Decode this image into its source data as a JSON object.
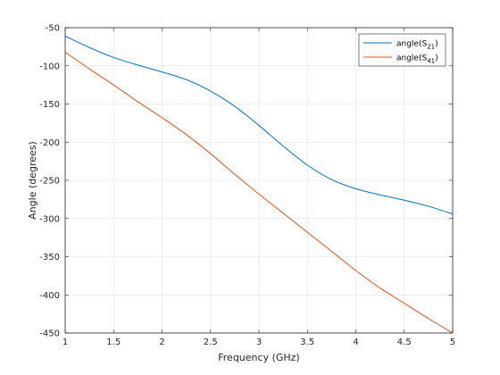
{
  "chart_data": {
    "type": "line",
    "xlabel": "Frequency (GHz)",
    "ylabel": "Angle (degrees)",
    "xlim": [
      1,
      5
    ],
    "ylim": [
      -450,
      -50
    ],
    "xticks": [
      1,
      1.5,
      2,
      2.5,
      3,
      3.5,
      4,
      4.5,
      5
    ],
    "yticks": [
      -50,
      -100,
      -150,
      -200,
      -250,
      -300,
      -350,
      -400,
      -450
    ],
    "xtick_labels": [
      "1",
      "1.5",
      "2",
      "2.5",
      "3",
      "3.5",
      "4",
      "4.5",
      "5"
    ],
    "ytick_labels": [
      "-50",
      "-100",
      "-150",
      "-200",
      "-250",
      "-300",
      "-350",
      "-400",
      "-450"
    ],
    "grid": true,
    "legend_position": "top-right",
    "series": [
      {
        "name": "angle(S21)",
        "label_base": "angle(S",
        "label_sub": "21",
        "label_end": ")",
        "color": "#0072BD",
        "x": [
          1.0,
          1.25,
          1.5,
          1.75,
          2.0,
          2.25,
          2.5,
          2.75,
          3.0,
          3.25,
          3.5,
          3.75,
          4.0,
          4.25,
          4.5,
          4.75,
          5.0
        ],
        "y": [
          -61,
          -76,
          -89,
          -99,
          -108,
          -118,
          -133,
          -153,
          -178,
          -205,
          -230,
          -249,
          -261,
          -269,
          -276,
          -284,
          -294
        ]
      },
      {
        "name": "angle(S41)",
        "label_base": "angle(S",
        "label_sub": "41",
        "label_end": ")",
        "color": "#D95319",
        "x": [
          1.0,
          1.25,
          1.5,
          1.75,
          2.0,
          2.25,
          2.5,
          2.75,
          3.0,
          3.25,
          3.5,
          3.75,
          4.0,
          4.25,
          4.5,
          4.75,
          5.0
        ],
        "y": [
          -82,
          -104,
          -125,
          -147,
          -168,
          -190,
          -215,
          -242,
          -268,
          -293,
          -318,
          -343,
          -368,
          -391,
          -411,
          -431,
          -450
        ]
      }
    ]
  }
}
